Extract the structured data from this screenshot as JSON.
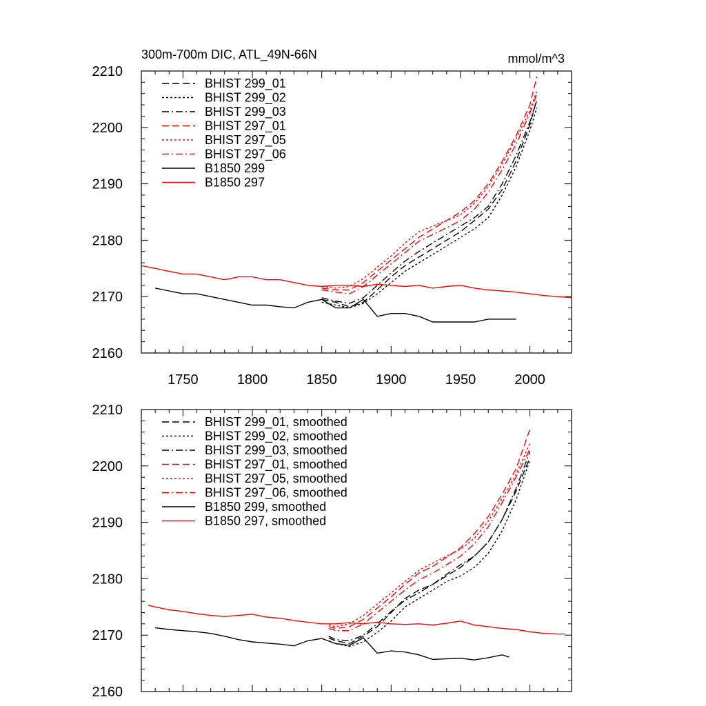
{
  "chart_data": [
    {
      "type": "line",
      "title": "300m-700m DIC, ATL_49N-66N",
      "units": "mmol/m^3",
      "xlim": [
        1720,
        2030
      ],
      "ylim": [
        2160,
        2210
      ],
      "x_ticks": [
        1750,
        1800,
        1850,
        1900,
        1950,
        2000
      ],
      "y_ticks": [
        2160,
        2170,
        2180,
        2190,
        2200,
        2210
      ],
      "x_tick_labels_shown": true,
      "legend_position": "top-left",
      "series": [
        {
          "name": "BHIST 299_01",
          "color": "#000000",
          "dash": "dashed",
          "x": [
            1850,
            1860,
            1870,
            1880,
            1890,
            1900,
            1910,
            1920,
            1930,
            1940,
            1950,
            1960,
            1970,
            1980,
            1990,
            2000,
            2005
          ],
          "y": [
            2169.5,
            2169,
            2168.2,
            2169,
            2171.2,
            2173.5,
            2175.5,
            2177,
            2178.5,
            2180,
            2181.5,
            2183.5,
            2185.5,
            2189,
            2194,
            2200.5,
            2205
          ]
        },
        {
          "name": "BHIST 299_02",
          "color": "#000000",
          "dash": "dotted",
          "x": [
            1850,
            1860,
            1870,
            1880,
            1890,
            1900,
            1910,
            1920,
            1930,
            1940,
            1950,
            1960,
            1970,
            1980,
            1990,
            2000,
            2005
          ],
          "y": [
            2169,
            2168.5,
            2168,
            2168.8,
            2170.5,
            2172.5,
            2174.5,
            2176,
            2177.5,
            2179,
            2180.5,
            2182,
            2184,
            2188,
            2193,
            2199.5,
            2203.5
          ]
        },
        {
          "name": "BHIST 299_03",
          "color": "#000000",
          "dash": "dashdot",
          "x": [
            1850,
            1860,
            1870,
            1880,
            1890,
            1900,
            1910,
            1920,
            1930,
            1940,
            1950,
            1960,
            1970,
            1980,
            1990,
            2000,
            2005
          ],
          "y": [
            2169.8,
            2169.2,
            2168.8,
            2169.8,
            2172,
            2174.2,
            2176.3,
            2178,
            2179.5,
            2181,
            2182.5,
            2184,
            2186,
            2190,
            2195,
            2201,
            2204.8
          ]
        },
        {
          "name": "BHIST 297_01",
          "color": "#ff0000",
          "dash": "dashed",
          "x": [
            1850,
            1860,
            1870,
            1880,
            1890,
            1900,
            1910,
            1920,
            1930,
            1940,
            1950,
            1960,
            1970,
            1980,
            1990,
            2000,
            2005
          ],
          "y": [
            2171.5,
            2171.2,
            2171.2,
            2172.5,
            2174.5,
            2176.5,
            2178.5,
            2180.5,
            2182,
            2183.5,
            2185,
            2187,
            2190,
            2194,
            2198.5,
            2204,
            2209
          ]
        },
        {
          "name": "BHIST 297_05",
          "color": "#ff0000",
          "dash": "dotted",
          "x": [
            1850,
            1860,
            1870,
            1880,
            1890,
            1900,
            1910,
            1920,
            1930,
            1940,
            1950,
            1960,
            1970,
            1980,
            1990,
            2000,
            2005
          ],
          "y": [
            2171.8,
            2171.5,
            2171.8,
            2173.2,
            2175.2,
            2177.2,
            2179.5,
            2181.5,
            2182.5,
            2183.5,
            2184.5,
            2186.5,
            2189.5,
            2193.5,
            2198,
            2203,
            2206.5
          ]
        },
        {
          "name": "BHIST 297_06",
          "color": "#ff0000",
          "dash": "dashdot",
          "x": [
            1850,
            1860,
            1870,
            1880,
            1890,
            1900,
            1910,
            1920,
            1930,
            1940,
            1950,
            1960,
            1970,
            1980,
            1990,
            2000,
            2005
          ],
          "y": [
            2171.2,
            2170.8,
            2170.5,
            2171.8,
            2173.8,
            2175.8,
            2177.8,
            2179.8,
            2181,
            2182.2,
            2183.5,
            2185.5,
            2188.5,
            2192.5,
            2197,
            2202.5,
            2206
          ]
        },
        {
          "name": "B1850 299",
          "color": "#000000",
          "dash": "solid",
          "x": [
            1730,
            1740,
            1750,
            1760,
            1770,
            1780,
            1790,
            1800,
            1810,
            1820,
            1830,
            1840,
            1850,
            1860,
            1870,
            1880,
            1890,
            1900,
            1910,
            1920,
            1930,
            1940,
            1950,
            1960,
            1970,
            1980,
            1990
          ],
          "y": [
            2171.5,
            2171,
            2170.5,
            2170.5,
            2170,
            2169.5,
            2169,
            2168.5,
            2168.5,
            2168.2,
            2168,
            2169,
            2169.5,
            2168,
            2168,
            2169.5,
            2166.5,
            2167,
            2167,
            2166.5,
            2165.5,
            2165.5,
            2165.5,
            2165.5,
            2166,
            2166,
            2166
          ]
        },
        {
          "name": "B1850 297",
          "color": "#ff0000",
          "dash": "solid",
          "x": [
            1720,
            1730,
            1740,
            1750,
            1760,
            1770,
            1780,
            1790,
            1800,
            1810,
            1820,
            1830,
            1840,
            1850,
            1860,
            1870,
            1880,
            1890,
            1900,
            1910,
            1920,
            1930,
            1940,
            1950,
            1960,
            1970,
            1980,
            1990,
            2000,
            2010,
            2020,
            2030
          ],
          "y": [
            2175.5,
            2175,
            2174.5,
            2174,
            2174,
            2173.5,
            2173,
            2173.5,
            2173.5,
            2173,
            2173,
            2172.5,
            2172,
            2171.8,
            2172,
            2172,
            2171.8,
            2172.2,
            2172,
            2171.8,
            2172,
            2171.5,
            2171.8,
            2172,
            2171.5,
            2171.2,
            2171,
            2170.8,
            2170.5,
            2170.2,
            2170,
            2169.8
          ]
        }
      ]
    },
    {
      "type": "line",
      "title": "",
      "units": "",
      "xlim": [
        1720,
        2030
      ],
      "ylim": [
        2160,
        2210
      ],
      "x_ticks": [
        1750,
        1800,
        1850,
        1900,
        1950,
        2000
      ],
      "y_ticks": [
        2160,
        2170,
        2180,
        2190,
        2200,
        2210
      ],
      "x_tick_labels_shown": false,
      "legend_position": "top-left",
      "series": [
        {
          "name": "BHIST 299_01, smoothed",
          "color": "#000000",
          "dash": "dashed",
          "x": [
            1855,
            1860,
            1870,
            1880,
            1890,
            1900,
            1910,
            1920,
            1930,
            1940,
            1950,
            1960,
            1970,
            1980,
            1990,
            2000
          ],
          "y": [
            2169.5,
            2169,
            2168.5,
            2169.8,
            2171.5,
            2174,
            2176.5,
            2178,
            2179,
            2180.5,
            2182,
            2184,
            2186.5,
            2190.5,
            2195.5,
            2201.5
          ]
        },
        {
          "name": "BHIST 299_02, smoothed",
          "color": "#000000",
          "dash": "dotted",
          "x": [
            1855,
            1860,
            1870,
            1880,
            1890,
            1900,
            1910,
            1920,
            1930,
            1940,
            1950,
            1960,
            1970,
            1980,
            1990,
            2000
          ],
          "y": [
            2169,
            2168.5,
            2168,
            2168.8,
            2170.5,
            2172.5,
            2175,
            2176.5,
            2178,
            2179.5,
            2180.5,
            2182,
            2184.5,
            2188.5,
            2194,
            2201
          ]
        },
        {
          "name": "BHIST 299_03, smoothed",
          "color": "#000000",
          "dash": "dashdot",
          "x": [
            1855,
            1860,
            1870,
            1880,
            1890,
            1900,
            1910,
            1920,
            1930,
            1940,
            1950,
            1960,
            1970,
            1980,
            1990,
            2000
          ],
          "y": [
            2169.8,
            2169.2,
            2169,
            2170,
            2172,
            2174.2,
            2176.2,
            2177.5,
            2179,
            2180.8,
            2182.5,
            2184,
            2186.5,
            2190.5,
            2196,
            2202.5
          ]
        },
        {
          "name": "BHIST 297_01, smoothed",
          "color": "#ff0000",
          "dash": "dashed",
          "x": [
            1855,
            1860,
            1870,
            1880,
            1890,
            1900,
            1910,
            1920,
            1930,
            1940,
            1950,
            1960,
            1970,
            1980,
            1990,
            2000
          ],
          "y": [
            2171.5,
            2171.2,
            2171.5,
            2172.8,
            2174.8,
            2176.8,
            2179,
            2181,
            2182.2,
            2183.8,
            2185.5,
            2188,
            2191,
            2195,
            2199.5,
            2206.5
          ]
        },
        {
          "name": "BHIST 297_05, smoothed",
          "color": "#ff0000",
          "dash": "dotted",
          "x": [
            1855,
            1860,
            1870,
            1880,
            1890,
            1900,
            1910,
            1920,
            1930,
            1940,
            1950,
            1960,
            1970,
            1980,
            1990,
            2000
          ],
          "y": [
            2171.8,
            2171.5,
            2172,
            2173.5,
            2175.5,
            2177.5,
            2179.5,
            2181.5,
            2182.8,
            2184,
            2185.2,
            2187.2,
            2190.2,
            2194.2,
            2198.5,
            2204
          ]
        },
        {
          "name": "BHIST 297_06, smoothed",
          "color": "#ff0000",
          "dash": "dashdot",
          "x": [
            1855,
            1860,
            1870,
            1880,
            1890,
            1900,
            1910,
            1920,
            1930,
            1940,
            1950,
            1960,
            1970,
            1980,
            1990,
            2000
          ],
          "y": [
            2171.2,
            2170.8,
            2170.8,
            2172,
            2174,
            2176,
            2178,
            2179.8,
            2181,
            2182.5,
            2184,
            2186.2,
            2189.2,
            2193.5,
            2198,
            2203
          ]
        },
        {
          "name": "B1850 299, smoothed",
          "color": "#000000",
          "dash": "solid",
          "x": [
            1730,
            1740,
            1750,
            1760,
            1770,
            1780,
            1790,
            1800,
            1810,
            1820,
            1830,
            1840,
            1850,
            1860,
            1870,
            1880,
            1890,
            1900,
            1910,
            1920,
            1930,
            1940,
            1950,
            1960,
            1970,
            1980,
            1985
          ],
          "y": [
            2171.3,
            2171,
            2170.8,
            2170.6,
            2170.3,
            2169.8,
            2169.2,
            2168.8,
            2168.6,
            2168.4,
            2168.1,
            2169,
            2169.4,
            2168.5,
            2168.2,
            2169.5,
            2166.8,
            2167.2,
            2167,
            2166.5,
            2165.7,
            2165.8,
            2165.9,
            2165.6,
            2166,
            2166.5,
            2166.1
          ]
        },
        {
          "name": "B1850 297, smoothed",
          "color": "#ff0000",
          "dash": "solid",
          "x": [
            1725,
            1730,
            1740,
            1750,
            1760,
            1770,
            1780,
            1790,
            1800,
            1810,
            1820,
            1830,
            1840,
            1850,
            1860,
            1870,
            1880,
            1890,
            1900,
            1910,
            1920,
            1930,
            1940,
            1950,
            1960,
            1970,
            1980,
            1990,
            2000,
            2010,
            2020,
            2025
          ],
          "y": [
            2175.3,
            2175,
            2174.5,
            2174.2,
            2173.8,
            2173.5,
            2173.3,
            2173.5,
            2173.7,
            2173.2,
            2173,
            2172.6,
            2172.3,
            2172,
            2172,
            2172.2,
            2172,
            2172.3,
            2172,
            2171.9,
            2172,
            2171.8,
            2172.1,
            2172.5,
            2171.8,
            2171.5,
            2171.2,
            2171,
            2170.6,
            2170.3,
            2170.2,
            2170.2
          ]
        }
      ]
    }
  ]
}
